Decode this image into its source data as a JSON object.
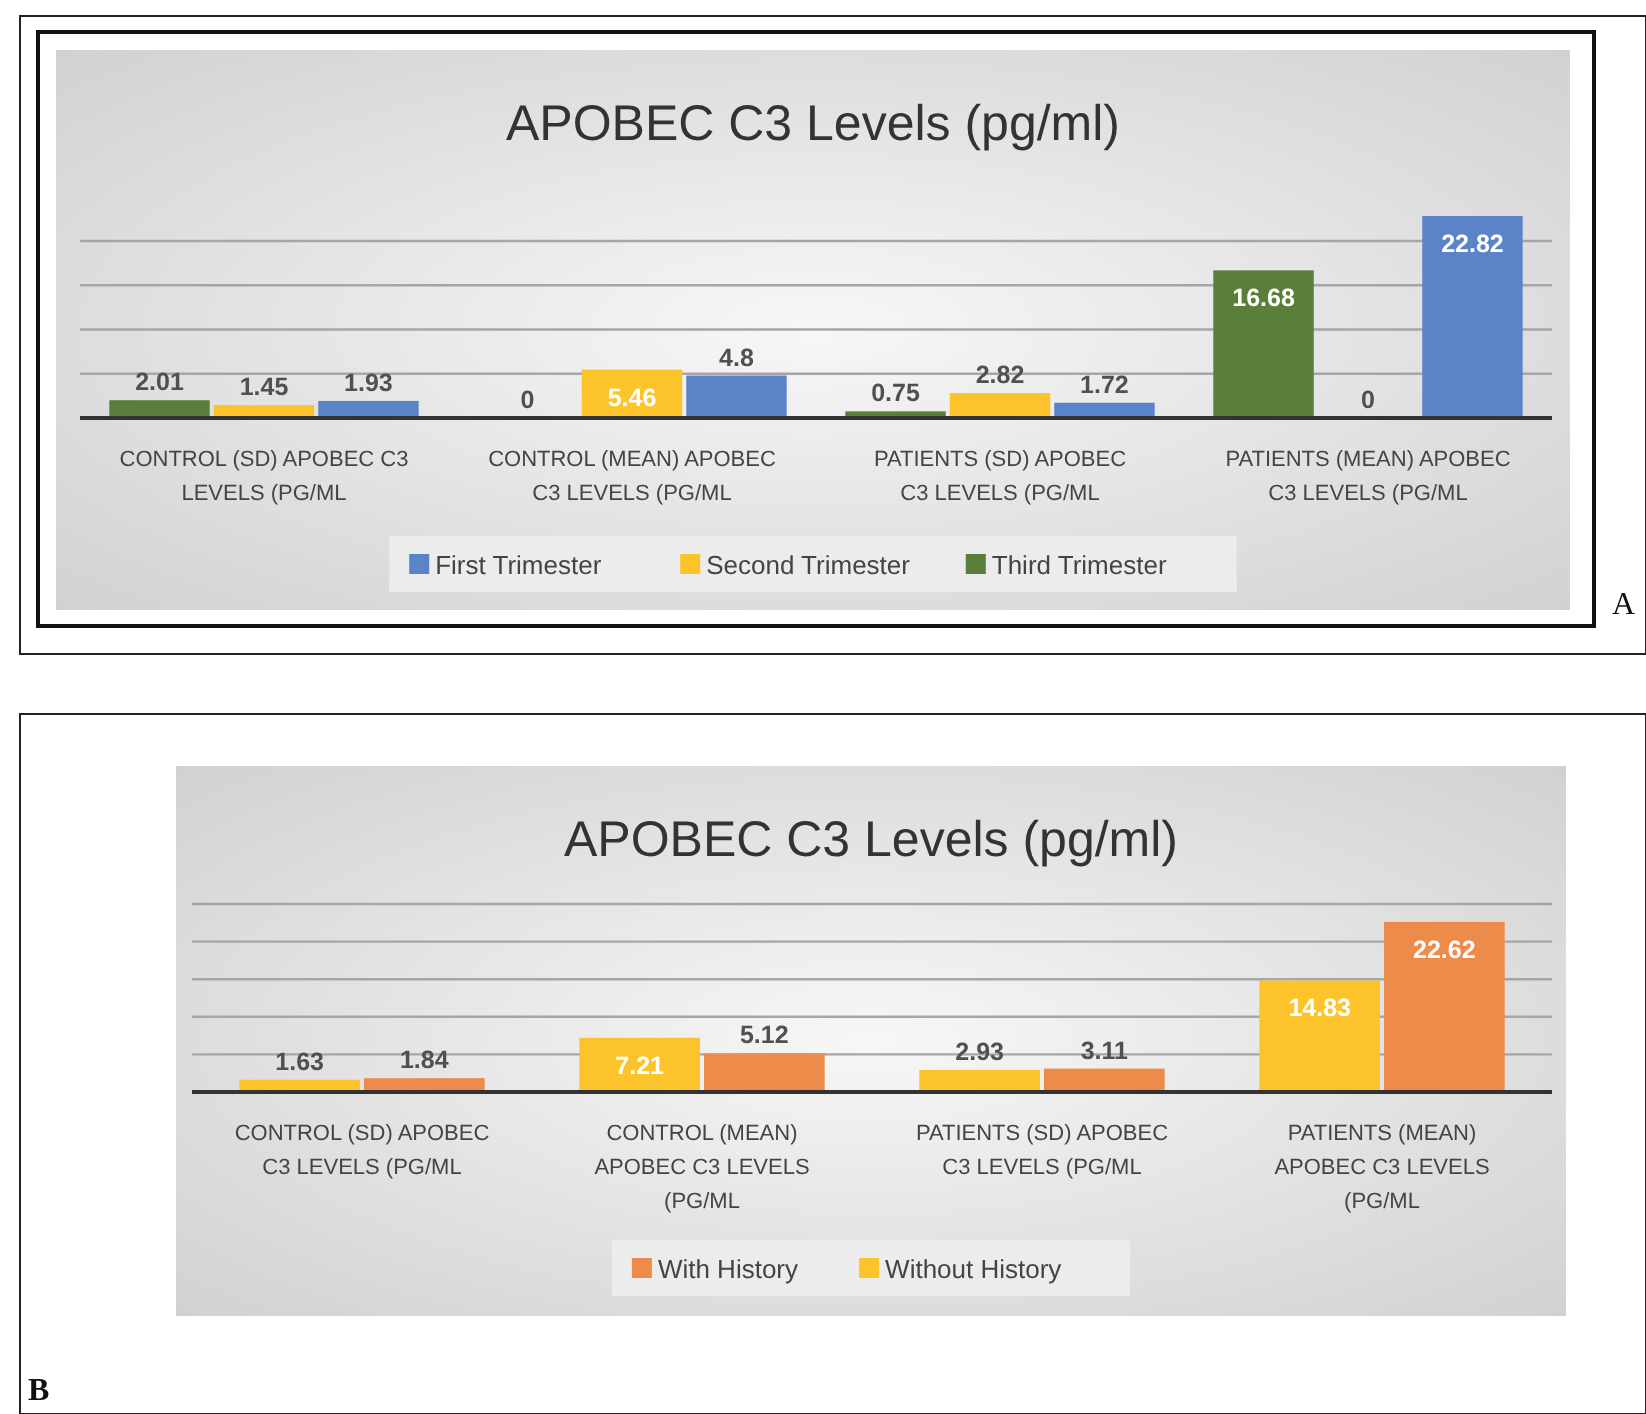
{
  "chart_data": [
    {
      "type": "bar",
      "title": "APOBEC C3 Levels (pg/ml)",
      "categories": [
        "CONTROL (SD) APOBEC C3 LEVELS (PG/ML",
        "CONTROL (MEAN) APOBEC C3 LEVELS (PG/ML",
        "PATIENTS (SD) APOBEC C3 LEVELS (PG/ML",
        "PATIENTS (MEAN) APOBEC C3 LEVELS (PG/ML"
      ],
      "series": [
        {
          "name": "Third Trimester",
          "color": "#5b7f3b",
          "values": [
            2.01,
            0,
            0.75,
            16.68
          ]
        },
        {
          "name": "Second Trimester",
          "color": "#fcc42a",
          "values": [
            1.45,
            5.46,
            2.82,
            0
          ]
        },
        {
          "name": "First Trimester",
          "color": "#5b84c8",
          "values": [
            1.93,
            4.8,
            1.72,
            22.82
          ]
        }
      ],
      "yticks": [
        {
          "value": 5,
          "label": null
        },
        {
          "value": 10,
          "label": null
        },
        {
          "value": 15,
          "label": null
        },
        {
          "value": 20,
          "label": null
        }
      ],
      "tick_labels": "x",
      "grid": "y",
      "legend": "bottom",
      "data_labels": true,
      "annotations": [
        "A"
      ]
    },
    {
      "type": "bar",
      "title": "APOBEC C3 Levels (pg/ml)",
      "categories": [
        "CONTROL (SD) APOBEC C3 LEVELS (PG/ML",
        "CONTROL (MEAN) APOBEC C3 LEVELS (PG/ML",
        "PATIENTS (SD) APOBEC C3 LEVELS (PG/ML",
        "PATIENTS (MEAN) APOBEC C3 LEVELS (PG/ML"
      ],
      "series": [
        {
          "name": "Without History",
          "color": "#fcc42a",
          "values": [
            1.63,
            7.21,
            2.93,
            14.83
          ]
        },
        {
          "name": "With History",
          "color": "#ed8b4b",
          "values": [
            1.84,
            5.12,
            3.11,
            22.62
          ]
        }
      ],
      "ylim": [
        0,
        25
      ],
      "yticks": [
        {
          "value": 5,
          "label": null
        },
        {
          "value": 10,
          "label": null
        },
        {
          "value": 15,
          "label": null
        },
        {
          "value": 20,
          "label": null
        },
        {
          "value": 25,
          "label": null
        }
      ],
      "tick_labels": "x",
      "grid": "y",
      "legend": "bottom",
      "data_labels": true,
      "annotations": [
        "B"
      ]
    }
  ]
}
